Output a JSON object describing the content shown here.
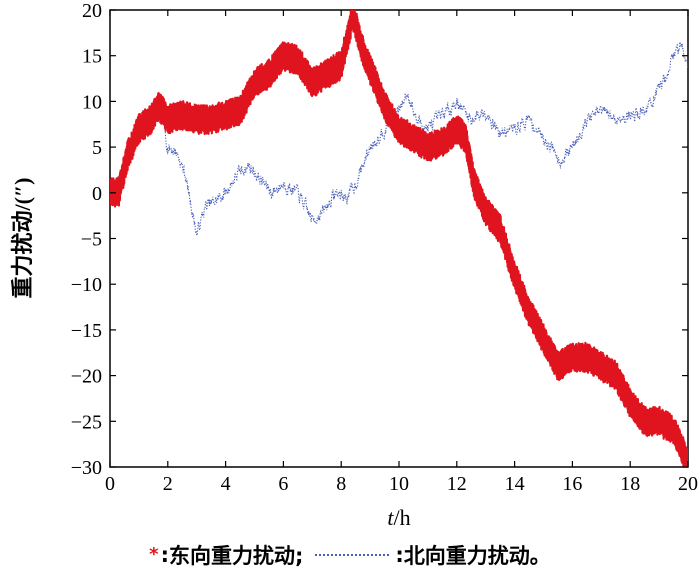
{
  "chart_data": {
    "type": "line",
    "title": "",
    "xlabel_var": "t",
    "xlabel_unit": "/h",
    "ylabel": "重力扰动/(″)",
    "xlim": [
      0,
      20
    ],
    "ylim": [
      -30,
      20
    ],
    "xticks": [
      0,
      2,
      4,
      6,
      8,
      10,
      12,
      14,
      16,
      18,
      20
    ],
    "yticks": [
      20,
      15,
      10,
      5,
      0,
      -5,
      -10,
      -15,
      -20,
      -25,
      -30
    ],
    "ytick_labels": [
      "20",
      "15",
      "10",
      "5",
      "0",
      "−5",
      "−10",
      "−15",
      "−20",
      "−25",
      "−30"
    ],
    "grid": false,
    "legend_position": "bottom",
    "series": [
      {
        "name": "东向重力扰动;",
        "marker_symbol": "*",
        "color": "#e0141f",
        "style": "thick-noisy",
        "x": [
          0,
          0.3,
          0.6,
          1.0,
          1.4,
          1.7,
          2.0,
          2.5,
          3.0,
          3.5,
          4.0,
          4.5,
          5.0,
          5.5,
          6.0,
          6.5,
          7.0,
          7.5,
          8.0,
          8.4,
          8.8,
          9.2,
          9.5,
          10.0,
          10.5,
          11.0,
          11.5,
          12.0,
          12.3,
          12.6,
          13.0,
          13.5,
          14.0,
          14.5,
          15.0,
          15.5,
          16.0,
          16.5,
          17.0,
          17.5,
          18.0,
          18.5,
          19.0,
          19.5,
          20.0
        ],
        "y": [
          0,
          0,
          4,
          7,
          8,
          9.5,
          8,
          8.5,
          8,
          8,
          8.5,
          9,
          12,
          13,
          15,
          14.5,
          12,
          13,
          14,
          19.5,
          15,
          12,
          9.5,
          7,
          6,
          5,
          5.5,
          7,
          6,
          1,
          -2,
          -4,
          -9,
          -13,
          -16,
          -19,
          -18,
          -18,
          -19,
          -20,
          -23,
          -25,
          -25,
          -26,
          -29.5
        ]
      },
      {
        "name": "北向重力扰动。",
        "marker_symbol": "dotted-line",
        "color": "#4a5fb8",
        "style": "thin-dotted",
        "x": [
          0,
          0.3,
          0.6,
          1.0,
          1.4,
          1.7,
          2.0,
          2.3,
          2.6,
          3.0,
          3.3,
          3.6,
          4.0,
          4.4,
          4.8,
          5.2,
          5.6,
          6.0,
          6.5,
          7.0,
          7.4,
          7.8,
          8.2,
          8.5,
          9.0,
          9.5,
          10.0,
          10.3,
          10.6,
          11.0,
          11.5,
          12.0,
          12.5,
          13.0,
          13.5,
          14.0,
          14.5,
          15.0,
          15.3,
          15.6,
          16.0,
          16.5,
          17.0,
          17.5,
          18.0,
          18.5,
          19.0,
          19.5,
          19.8,
          20.0
        ],
        "y": [
          0,
          1.5,
          4,
          7,
          9,
          10,
          5,
          4.5,
          2,
          -4.5,
          -1.5,
          -1,
          0,
          2,
          3,
          1.5,
          0,
          1,
          0,
          -3,
          -2,
          0,
          -0.5,
          1,
          5,
          7,
          9,
          11,
          8,
          7,
          8.5,
          10,
          8,
          9,
          6.5,
          7,
          8,
          6,
          5,
          3.5,
          5,
          8,
          9,
          8,
          8.5,
          9,
          11,
          15,
          16.5,
          13.5
        ]
      }
    ]
  }
}
